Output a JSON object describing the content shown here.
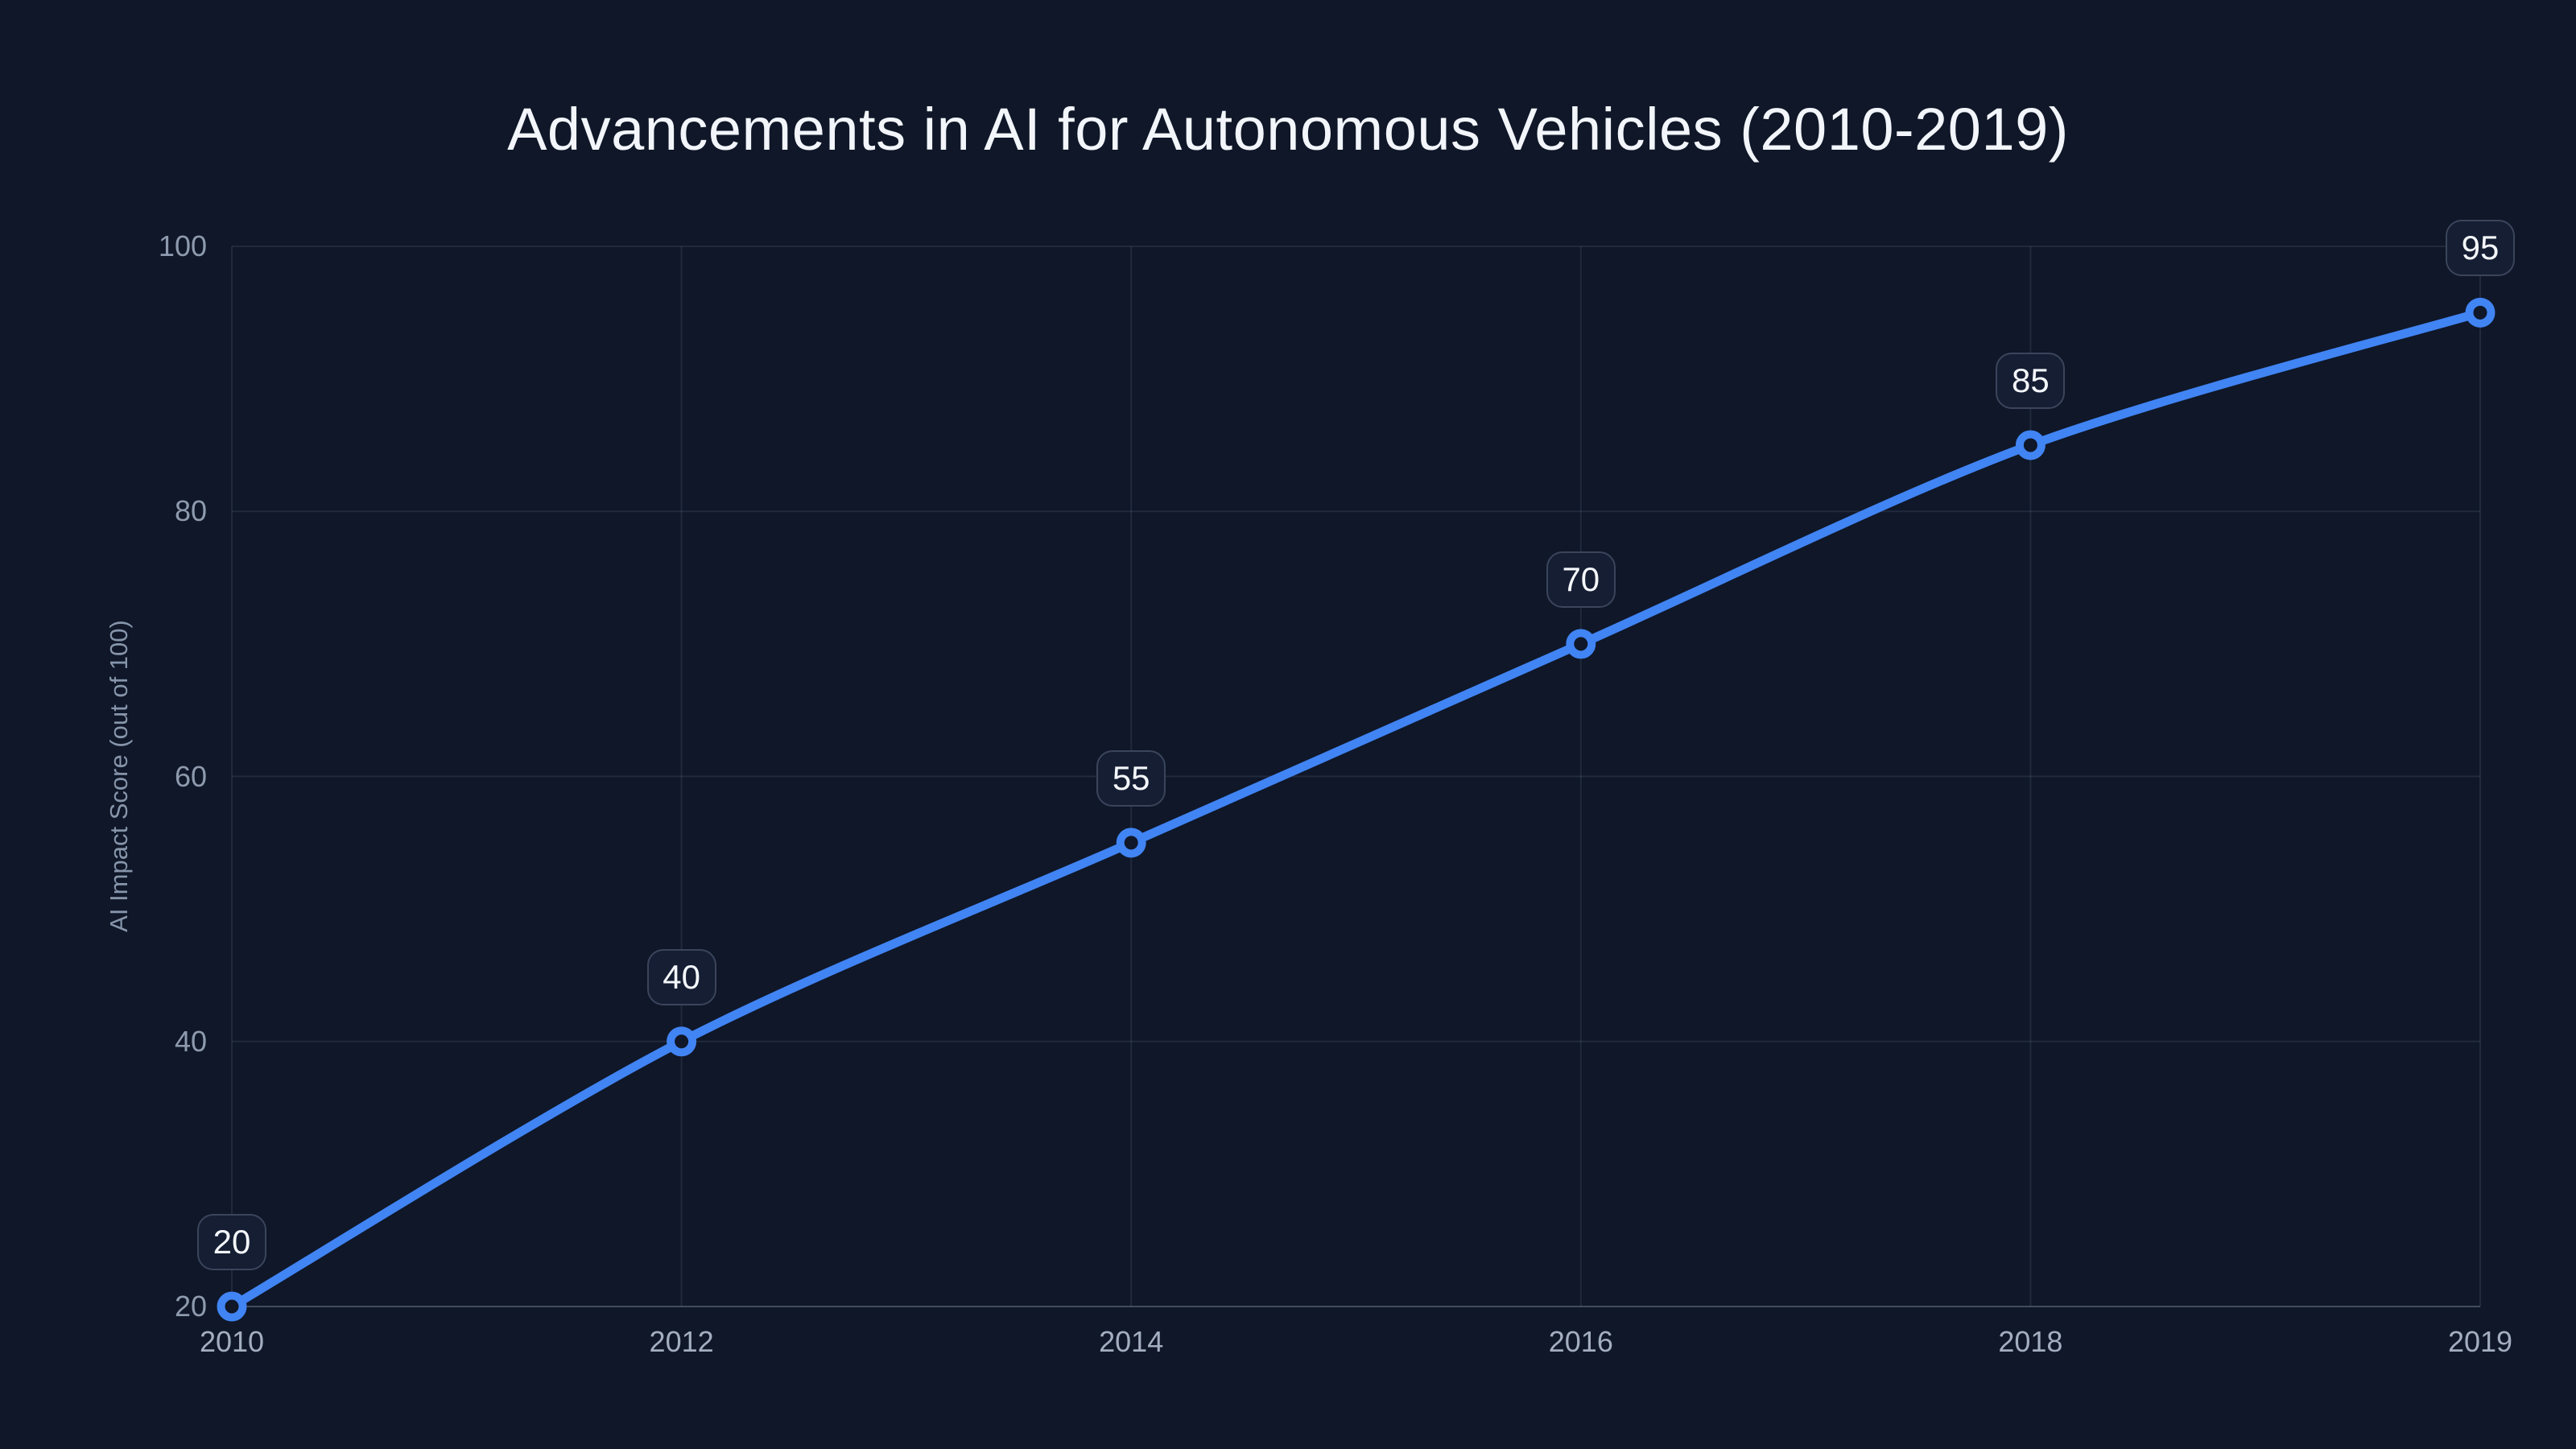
{
  "chart_data": {
    "type": "line",
    "title": "Advancements in AI for Autonomous Vehicles (2010-2019)",
    "categories": [
      "2010",
      "2012",
      "2014",
      "2016",
      "2018",
      "2019"
    ],
    "values": [
      20,
      40,
      55,
      70,
      85,
      95
    ],
    "xlabel": "",
    "ylabel": "AI Impact Score (out of 100)",
    "ylim": [
      20,
      100
    ],
    "yticks": [
      20,
      40,
      60,
      80,
      100
    ],
    "grid": true,
    "legend_position": "none",
    "data_labels_visible": true,
    "marker_style": "open-circle",
    "line_smoothing": true
  },
  "colors": {
    "background": "#0f1728",
    "title_text": "#f2f5fa",
    "y_tick_text": "#8e9aae",
    "x_tick_text": "#a3aec0",
    "axis_label_text": "#8795ab",
    "line": "#4184f4",
    "grid": "rgba(148,163,184,0.14)",
    "axis_line": "rgba(148,163,184,0.38)",
    "badge_background": "#151e33",
    "badge_border": "#3a455c",
    "badge_text": "#f4f7fb"
  }
}
